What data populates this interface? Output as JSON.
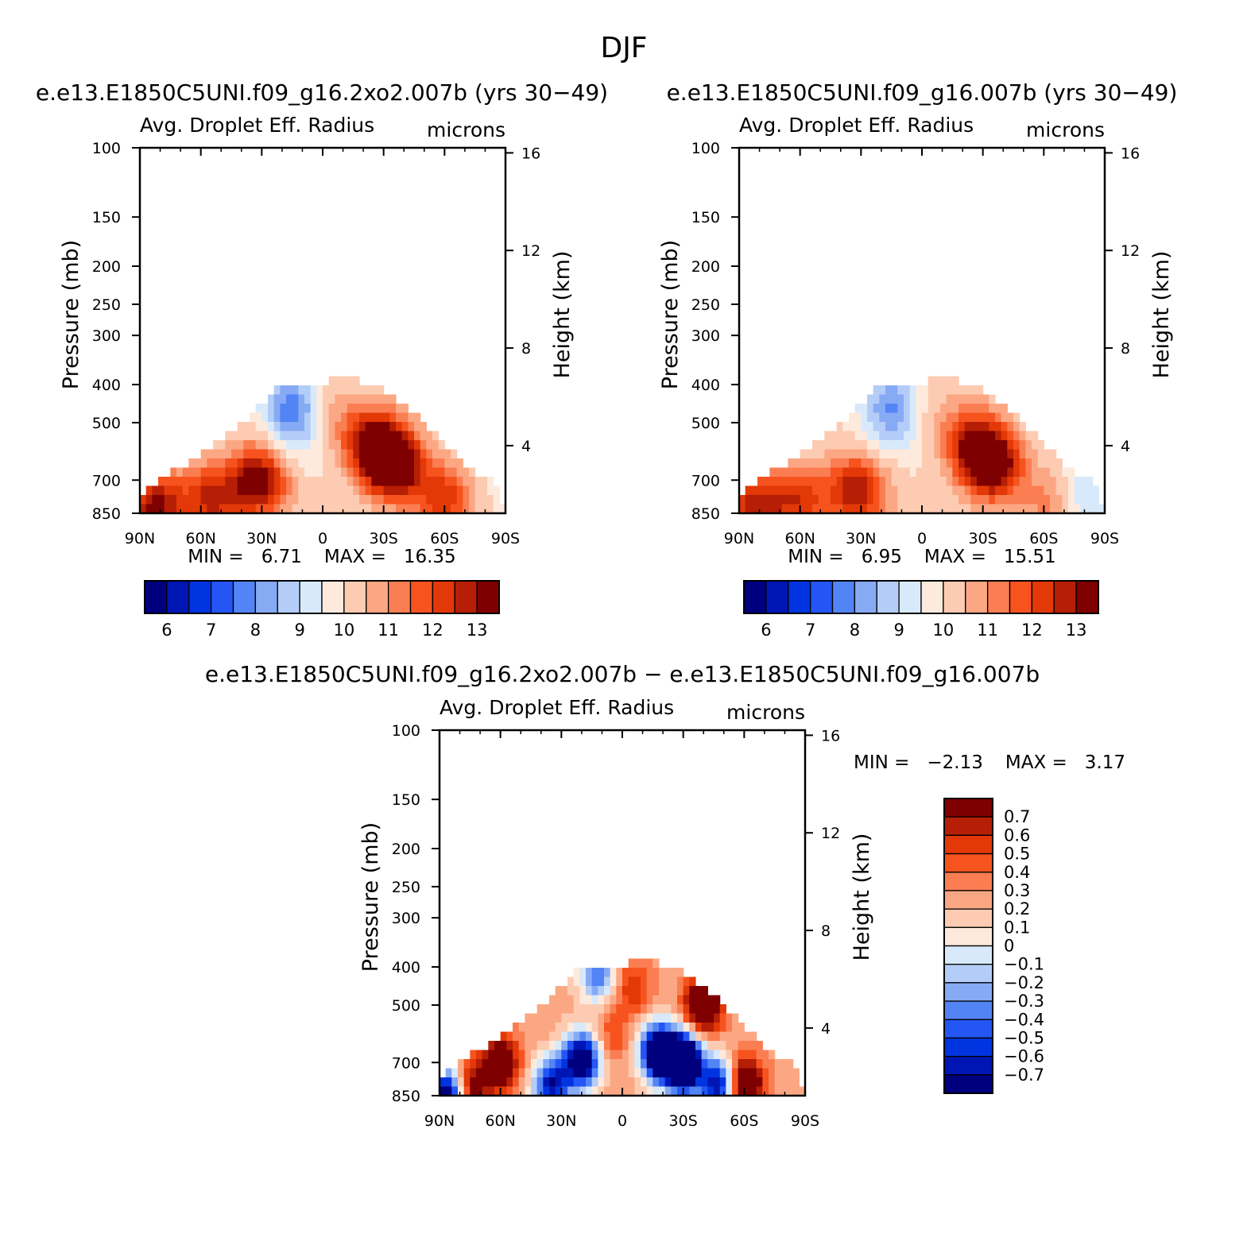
{
  "figure": {
    "title": "DJF"
  },
  "chart_data": [
    {
      "type": "heatmap",
      "title": "e.e13.E1850C5UNI.f09_g16.2xo2.007b (yrs 30−49)",
      "subtitle_left": "Avg. Droplet Eff. Radius",
      "subtitle_right": "microns",
      "ylabel": "Pressure (mb)",
      "ylabel_right": "Height (km)",
      "x_ticks": [
        "90N",
        "60N",
        "30N",
        "0",
        "30S",
        "60S",
        "90S"
      ],
      "y_ticks": [
        "100",
        "150",
        "200",
        "250",
        "300",
        "400",
        "500",
        "700",
        "850"
      ],
      "y_ticks_right": [
        "16",
        "12",
        "8",
        "4"
      ],
      "stats": {
        "min_label": "MIN =",
        "min": "6.71",
        "max_label": "MAX =",
        "max": "16.35"
      },
      "colorbar": {
        "orientation": "horizontal",
        "labels": [
          "6",
          "7",
          "8",
          "9",
          "10",
          "11",
          "12",
          "13"
        ],
        "colors": [
          "#00007f",
          "#0016b4",
          "#0034e0",
          "#2356f5",
          "#5384f5",
          "#87aaf5",
          "#b4cdf8",
          "#d8e9fb",
          "#fdeadc",
          "#fdcbb2",
          "#fca784",
          "#fa7e52",
          "#f6531f",
          "#e33807",
          "#b61e05",
          "#7f0000"
        ]
      },
      "blobs": [
        {
          "lat": 55,
          "p": 780,
          "v": 12.6
        },
        {
          "lat": 32,
          "p": 700,
          "v": 13.5
        },
        {
          "lat": 82,
          "p": 820,
          "v": 13.2
        },
        {
          "lat": -35,
          "p": 640,
          "v": 14.5
        },
        {
          "lat": -25,
          "p": 560,
          "v": 13.2
        },
        {
          "lat": -60,
          "p": 780,
          "v": 12.4
        },
        {
          "lat": -5,
          "p": 480,
          "v": 10.8
        },
        {
          "lat": 15,
          "p": 460,
          "v": 7.8
        },
        {
          "lat": 12,
          "p": 550,
          "v": 9.5
        },
        {
          "lat": -83,
          "p": 700,
          "v": 9.8
        },
        {
          "lat": 20,
          "p": 820,
          "v": 10.2
        }
      ],
      "top_boundary": [
        {
          "lat": 90,
          "p": 760
        },
        {
          "lat": 78,
          "p": 680
        },
        {
          "lat": 60,
          "p": 600
        },
        {
          "lat": 45,
          "p": 520
        },
        {
          "lat": 30,
          "p": 450
        },
        {
          "lat": 20,
          "p": 400
        },
        {
          "lat": 0,
          "p": 400
        },
        {
          "lat": -10,
          "p": 380
        },
        {
          "lat": -25,
          "p": 400
        },
        {
          "lat": -40,
          "p": 450
        },
        {
          "lat": -55,
          "p": 530
        },
        {
          "lat": -65,
          "p": 600
        },
        {
          "lat": -75,
          "p": 680
        },
        {
          "lat": -85,
          "p": 700
        },
        {
          "lat": -90,
          "p": 850
        }
      ]
    },
    {
      "type": "heatmap",
      "title": "e.e13.E1850C5UNI.f09_g16.007b (yrs 30−49)",
      "subtitle_left": "Avg. Droplet Eff. Radius",
      "subtitle_right": "microns",
      "ylabel": "Pressure (mb)",
      "ylabel_right": "Height (km)",
      "x_ticks": [
        "90N",
        "60N",
        "30N",
        "0",
        "30S",
        "60S",
        "90S"
      ],
      "y_ticks": [
        "100",
        "150",
        "200",
        "250",
        "300",
        "400",
        "500",
        "700",
        "850"
      ],
      "y_ticks_right": [
        "16",
        "12",
        "8",
        "4"
      ],
      "stats": {
        "min_label": "MIN =",
        "min": "6.95",
        "max_label": "MAX =",
        "max": "15.51"
      },
      "colorbar": {
        "orientation": "horizontal",
        "labels": [
          "6",
          "7",
          "8",
          "9",
          "10",
          "11",
          "12",
          "13"
        ],
        "colors": [
          "#00007f",
          "#0016b4",
          "#0034e0",
          "#2356f5",
          "#5384f5",
          "#87aaf5",
          "#b4cdf8",
          "#d8e9fb",
          "#fdeadc",
          "#fdcbb2",
          "#fca784",
          "#fa7e52",
          "#f6531f",
          "#e33807",
          "#b61e05",
          "#7f0000"
        ]
      },
      "blobs": [
        {
          "lat": 60,
          "p": 780,
          "v": 12.2
        },
        {
          "lat": 33,
          "p": 740,
          "v": 12.8
        },
        {
          "lat": 82,
          "p": 820,
          "v": 12.8
        },
        {
          "lat": -35,
          "p": 640,
          "v": 14.0
        },
        {
          "lat": -25,
          "p": 560,
          "v": 12.6
        },
        {
          "lat": -62,
          "p": 800,
          "v": 11.2
        },
        {
          "lat": -5,
          "p": 480,
          "v": 10.5
        },
        {
          "lat": 15,
          "p": 460,
          "v": 7.9
        },
        {
          "lat": 10,
          "p": 560,
          "v": 9.8
        },
        {
          "lat": -80,
          "p": 760,
          "v": 9.0
        },
        {
          "lat": 20,
          "p": 820,
          "v": 10.4
        }
      ],
      "top_boundary": [
        {
          "lat": 90,
          "p": 760
        },
        {
          "lat": 78,
          "p": 680
        },
        {
          "lat": 60,
          "p": 600
        },
        {
          "lat": 45,
          "p": 520
        },
        {
          "lat": 30,
          "p": 450
        },
        {
          "lat": 20,
          "p": 400
        },
        {
          "lat": 0,
          "p": 400
        },
        {
          "lat": -10,
          "p": 380
        },
        {
          "lat": -25,
          "p": 400
        },
        {
          "lat": -40,
          "p": 450
        },
        {
          "lat": -55,
          "p": 530
        },
        {
          "lat": -65,
          "p": 600
        },
        {
          "lat": -75,
          "p": 680
        },
        {
          "lat": -85,
          "p": 700
        },
        {
          "lat": -90,
          "p": 850
        }
      ]
    },
    {
      "type": "heatmap",
      "title": "e.e13.E1850C5UNI.f09_g16.2xo2.007b − e.e13.E1850C5UNI.f09_g16.007b",
      "subtitle_left": "Avg. Droplet Eff. Radius",
      "subtitle_right": "microns",
      "ylabel": "Pressure (mb)",
      "ylabel_right": "Height (km)",
      "x_ticks": [
        "90N",
        "60N",
        "30N",
        "0",
        "30S",
        "60S",
        "90S"
      ],
      "y_ticks": [
        "100",
        "150",
        "200",
        "250",
        "300",
        "400",
        "500",
        "700",
        "850"
      ],
      "y_ticks_right": [
        "16",
        "12",
        "8",
        "4"
      ],
      "stats": {
        "min_label": "MIN =",
        "min": "−2.13",
        "max_label": "MAX =",
        "max": "3.17"
      },
      "colorbar": {
        "orientation": "vertical",
        "labels": [
          "0.7",
          "0.6",
          "0.5",
          "0.4",
          "0.3",
          "0.2",
          "0.1",
          "0",
          "−0.1",
          "−0.2",
          "−0.3",
          "−0.4",
          "−0.5",
          "−0.6",
          "−0.7"
        ],
        "colors": [
          "#7f0000",
          "#b61e05",
          "#e33807",
          "#f6531f",
          "#fa7e52",
          "#fca784",
          "#fdcbb2",
          "#fdeadc",
          "#d8e9fb",
          "#b4cdf8",
          "#87aaf5",
          "#5384f5",
          "#2356f5",
          "#0034e0",
          "#0016b4",
          "#00007f"
        ]
      },
      "blobs": [
        {
          "lat": -40,
          "p": 500,
          "v": 1.2
        },
        {
          "lat": -60,
          "p": 800,
          "v": 1.2
        },
        {
          "lat": 60,
          "p": 700,
          "v": 1.0
        },
        {
          "lat": 75,
          "p": 820,
          "v": 0.9
        },
        {
          "lat": -30,
          "p": 700,
          "v": -1.6
        },
        {
          "lat": -18,
          "p": 660,
          "v": -1.2
        },
        {
          "lat": 20,
          "p": 690,
          "v": -1.0
        },
        {
          "lat": 35,
          "p": 800,
          "v": -0.7
        },
        {
          "lat": 5,
          "p": 600,
          "v": 0.5
        },
        {
          "lat": -5,
          "p": 450,
          "v": 0.6
        },
        {
          "lat": 12,
          "p": 420,
          "v": -0.4
        },
        {
          "lat": -48,
          "p": 800,
          "v": -0.8
        },
        {
          "lat": 86,
          "p": 850,
          "v": -1.0
        }
      ],
      "top_boundary": [
        {
          "lat": 90,
          "p": 760
        },
        {
          "lat": 78,
          "p": 680
        },
        {
          "lat": 60,
          "p": 600
        },
        {
          "lat": 45,
          "p": 520
        },
        {
          "lat": 30,
          "p": 450
        },
        {
          "lat": 20,
          "p": 400
        },
        {
          "lat": 0,
          "p": 400
        },
        {
          "lat": -10,
          "p": 380
        },
        {
          "lat": -25,
          "p": 400
        },
        {
          "lat": -40,
          "p": 450
        },
        {
          "lat": -55,
          "p": 530
        },
        {
          "lat": -65,
          "p": 600
        },
        {
          "lat": -75,
          "p": 680
        },
        {
          "lat": -85,
          "p": 700
        },
        {
          "lat": -90,
          "p": 850
        }
      ]
    }
  ]
}
